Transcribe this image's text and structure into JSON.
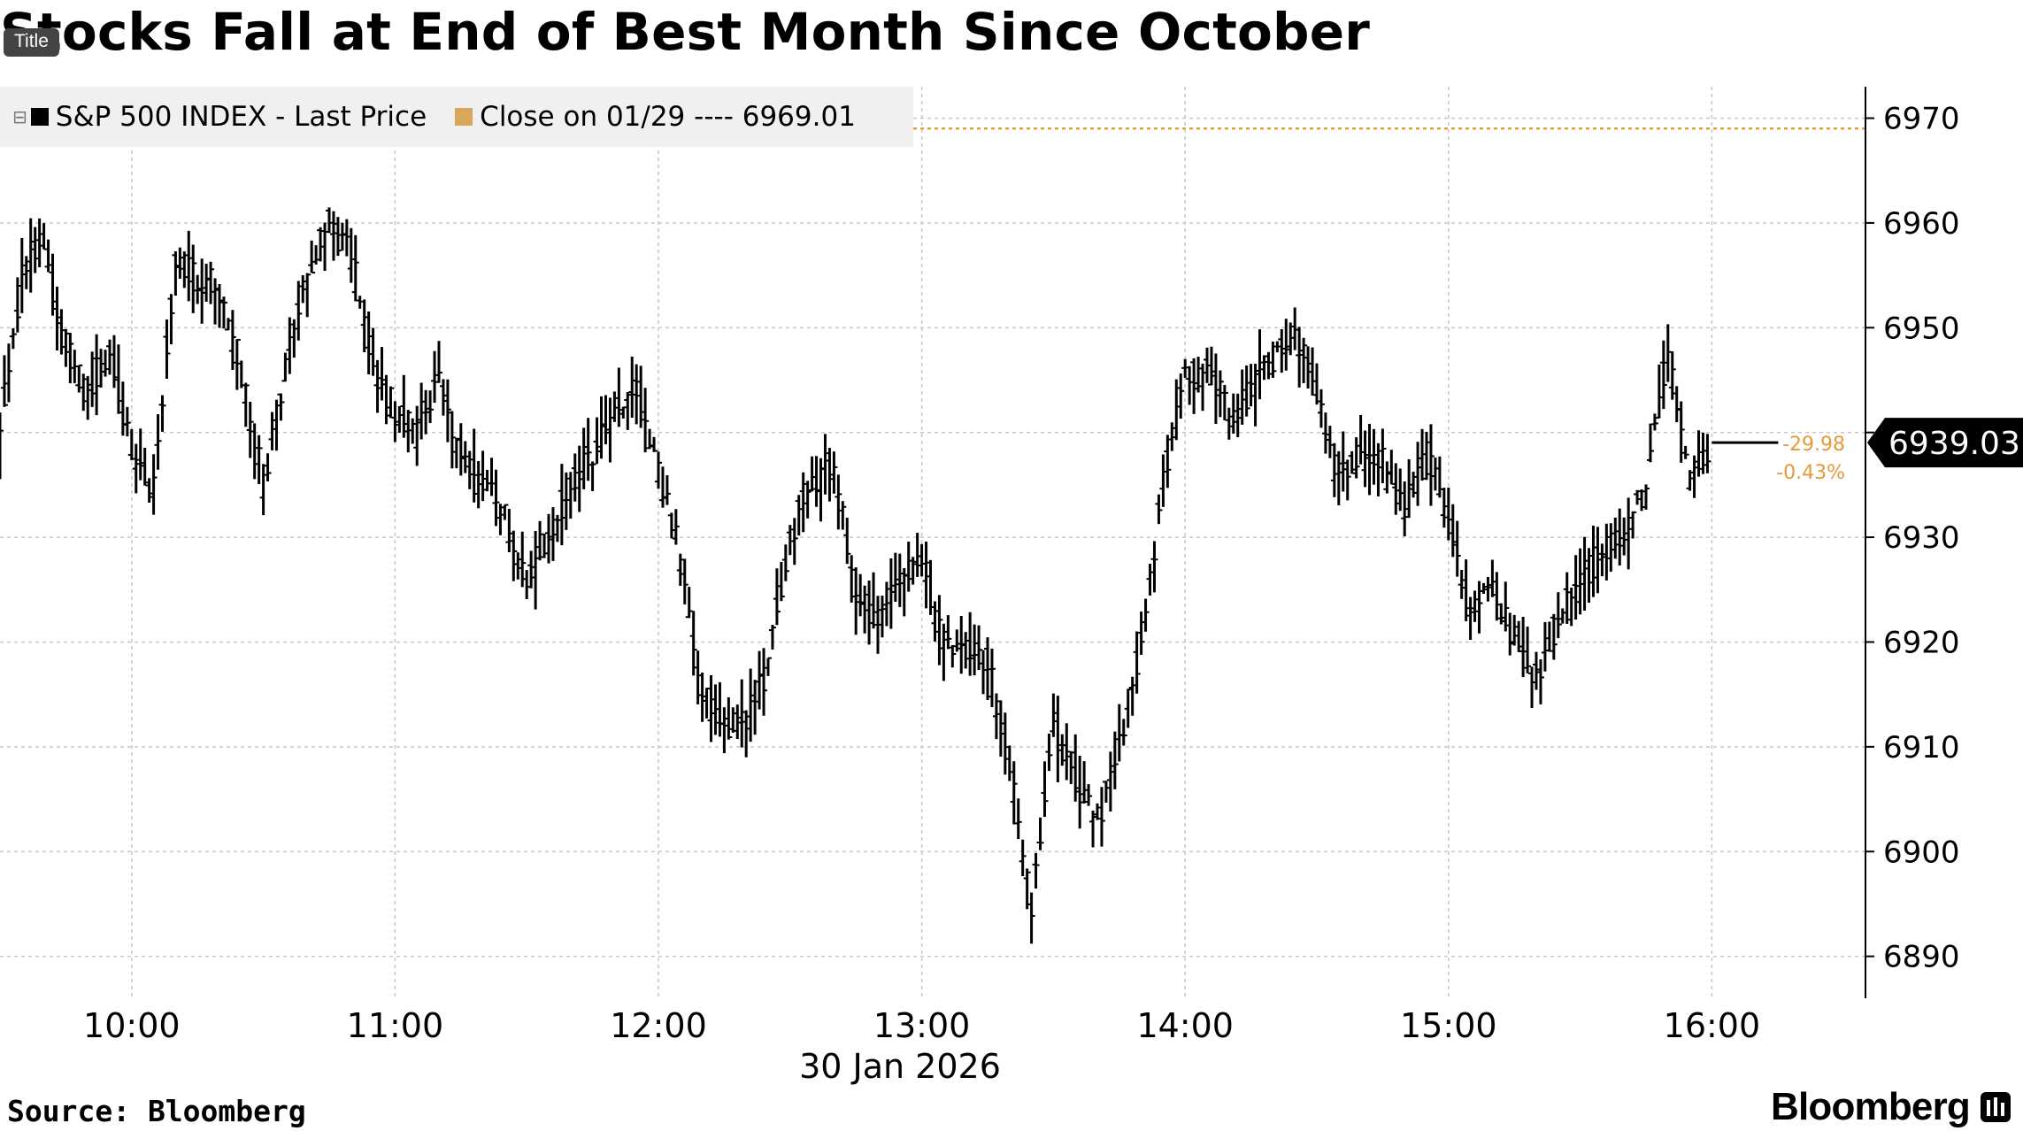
{
  "header": {
    "title": "Stocks Fall at End of Best Month Since October",
    "title_tag": "Title"
  },
  "legend": {
    "series_label": "S&P 500 INDEX - Last Price",
    "close_label": "Close on 01/29 ---- 6969.01"
  },
  "callouts": {
    "last_price": "6939.03",
    "change": "-29.98",
    "change_pct": "-0.43%"
  },
  "footer": {
    "source": "Source: Bloomberg",
    "brand": "Bloomberg"
  },
  "colors": {
    "series": "#000000",
    "close_line": "#e0a04a",
    "change_text": "#e39b3c",
    "grid": "#c8c8c8"
  },
  "chart_data": {
    "type": "line",
    "ohlc_bars": true,
    "ylim": [
      6886,
      6973
    ],
    "yticks": [
      6890,
      6900,
      6910,
      6920,
      6930,
      6940,
      6950,
      6960,
      6970
    ],
    "x_tick_labels": [
      "10:00",
      "11:00",
      "12:00",
      "13:00",
      "14:00",
      "15:00",
      "16:00"
    ],
    "x_date_label": "30 Jan 2026",
    "x_range": [
      "09:30",
      "16:35"
    ],
    "reference_line": {
      "label": "Close on 01/29",
      "value": 6969.01
    },
    "last_value": 6939.03,
    "change": -29.98,
    "change_pct": -0.43,
    "series": [
      {
        "name": "S&P 500 INDEX - Last Price",
        "x": [
          "09:30",
          "09:35",
          "09:40",
          "09:45",
          "09:50",
          "09:55",
          "10:00",
          "10:05",
          "10:10",
          "10:15",
          "10:20",
          "10:25",
          "10:30",
          "10:35",
          "10:40",
          "10:45",
          "10:50",
          "10:55",
          "11:00",
          "11:05",
          "11:10",
          "11:15",
          "11:20",
          "11:25",
          "11:30",
          "11:35",
          "11:40",
          "11:45",
          "11:50",
          "11:55",
          "12:00",
          "12:05",
          "12:10",
          "12:15",
          "12:20",
          "12:25",
          "12:30",
          "12:35",
          "12:40",
          "12:45",
          "12:50",
          "12:55",
          "13:00",
          "13:05",
          "13:10",
          "13:15",
          "13:20",
          "13:25",
          "13:30",
          "13:35",
          "13:40",
          "13:45",
          "13:50",
          "13:55",
          "14:00",
          "14:05",
          "14:10",
          "14:15",
          "14:20",
          "14:25",
          "14:30",
          "14:35",
          "14:40",
          "14:45",
          "14:50",
          "14:55",
          "15:00",
          "15:05",
          "15:10",
          "15:15",
          "15:20",
          "15:25",
          "15:30",
          "15:35",
          "15:40",
          "15:45",
          "15:50",
          "15:55",
          "16:00"
        ],
        "values": [
          6940,
          6955,
          6958,
          6948,
          6944,
          6948,
          6938,
          6935,
          6957,
          6955,
          6954,
          6946,
          6935,
          6946,
          6955,
          6960,
          6957,
          6946,
          6942,
          6940,
          6945,
          6938,
          6935,
          6932,
          6926,
          6930,
          6935,
          6938,
          6942,
          6944,
          6936,
          6928,
          6915,
          6912,
          6912,
          6918,
          6930,
          6935,
          6937,
          6925,
          6922,
          6926,
          6928,
          6920,
          6919,
          6918,
          6908,
          6894,
          6912,
          6907,
          6903,
          6910,
          6920,
          6935,
          6945,
          6946,
          6942,
          6944,
          6947,
          6949,
          6944,
          6935,
          6938,
          6937,
          6932,
          6938,
          6932,
          6922,
          6925,
          6920,
          6917,
          6922,
          6926,
          6928,
          6930,
          6935,
          6948,
          6936,
          6939
        ]
      }
    ]
  }
}
